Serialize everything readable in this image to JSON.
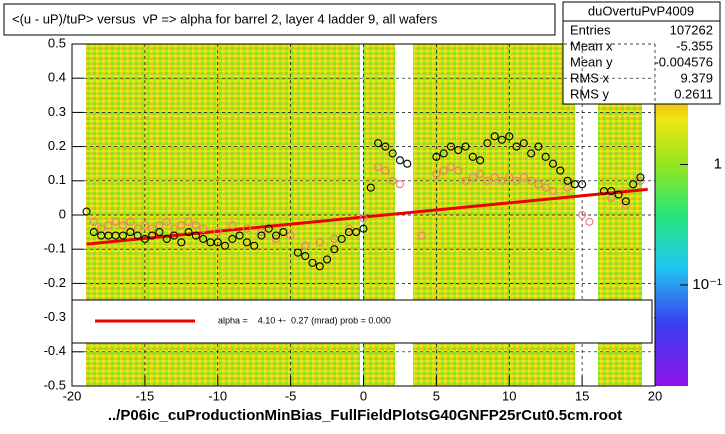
{
  "chart_data": {
    "type": "scatter",
    "title": "<(u - uP)/tuP> versus  vP => alpha for barrel 2, layer 4 ladder 9, all wafers",
    "footnote": "../P06ic_cuProductionMinBias_FullFieldPlotsG40GNFP25rCut0.5cm.root",
    "xlim": [
      -20,
      20
    ],
    "ylim": [
      -0.5,
      0.5
    ],
    "xticks": [
      -20,
      -15,
      -10,
      -5,
      0,
      5,
      10,
      15,
      20
    ],
    "yticks": [
      -0.5,
      -0.4,
      -0.3,
      -0.2,
      -0.1,
      0,
      0.1,
      0.2,
      0.3,
      0.4,
      0.5
    ],
    "grid": true,
    "zlim": [
      0.0145,
      10
    ],
    "zlog": true,
    "zticks": [
      1,
      {
        "value": 0.1,
        "label": "10⁻¹"
      }
    ],
    "series": [
      {
        "color": "#000000",
        "x": [
          -19,
          -18.5,
          -18,
          -17.5,
          -17,
          -16.5,
          -16,
          -15.5,
          -15,
          -14.5,
          -14,
          -13.5,
          -13,
          -12.5,
          -12,
          -11.5,
          -11,
          -10.5,
          -10,
          -9.5,
          -9,
          -8.5,
          -8,
          -7.5,
          -7,
          -6.5,
          -6,
          -5.5,
          -4.5,
          -4,
          -3.5,
          -3,
          -2.5,
          -2,
          -1.5,
          -1,
          -0.5,
          0,
          0.5,
          1,
          1.5,
          2,
          2.5,
          3,
          5,
          5.5,
          6,
          6.5,
          7,
          7.5,
          8,
          8.5,
          9,
          9.5,
          10,
          10.5,
          11,
          11.5,
          12,
          12.5,
          13,
          13.5,
          14,
          14.5,
          15,
          16.5,
          17,
          17.5,
          18,
          18.5,
          19
        ],
        "values": [
          0.01,
          -0.05,
          -0.06,
          -0.06,
          -0.06,
          -0.06,
          -0.05,
          -0.06,
          -0.07,
          -0.06,
          -0.05,
          -0.07,
          -0.06,
          -0.08,
          -0.05,
          -0.06,
          -0.07,
          -0.08,
          -0.08,
          -0.09,
          -0.07,
          -0.06,
          -0.08,
          -0.09,
          -0.06,
          -0.04,
          -0.06,
          -0.05,
          -0.11,
          -0.12,
          -0.14,
          -0.15,
          -0.13,
          -0.1,
          -0.07,
          -0.05,
          -0.05,
          -0.04,
          0.08,
          0.21,
          0.2,
          0.18,
          0.16,
          0.15,
          0.17,
          0.18,
          0.2,
          0.19,
          0.2,
          0.17,
          0.16,
          0.21,
          0.23,
          0.22,
          0.23,
          0.2,
          0.21,
          0.18,
          0.2,
          0.17,
          0.15,
          0.13,
          0.1,
          0.09,
          0.09,
          0.07,
          0.07,
          0.06,
          0.04,
          0.09,
          0.11
        ]
      },
      {
        "color": "#f07878",
        "x": [
          -18.5,
          -18,
          -17.5,
          -17,
          -16.5,
          -16,
          -15.5,
          -15,
          -14.5,
          -14,
          -13.5,
          -13,
          -12.5,
          -12,
          -11.5,
          -11,
          -10,
          -9,
          -8,
          -7,
          -6,
          -5,
          -4,
          -3,
          -2,
          -1,
          0,
          1,
          1.5,
          2,
          2.5,
          4,
          5,
          5.5,
          6,
          6.5,
          7,
          7.5,
          8,
          8.5,
          9,
          9.5,
          10,
          10.5,
          11,
          11.5,
          12,
          12.5,
          13,
          14,
          15,
          15.5,
          17,
          18,
          19
        ],
        "values": [
          -0.02,
          -0.04,
          -0.03,
          -0.02,
          -0.03,
          -0.02,
          -0.04,
          -0.03,
          -0.04,
          -0.03,
          -0.02,
          -0.04,
          -0.03,
          -0.02,
          -0.03,
          -0.04,
          -0.05,
          -0.03,
          -0.04,
          -0.05,
          -0.07,
          -0.06,
          -0.09,
          -0.08,
          -0.07,
          -0.04,
          -0.01,
          0.14,
          0.13,
          0.1,
          0.09,
          -0.06,
          0.12,
          0.13,
          0.14,
          0.13,
          0.1,
          0.11,
          0.12,
          0.1,
          0.11,
          0.1,
          0.11,
          0.1,
          0.11,
          0.1,
          0.09,
          0.08,
          0.07,
          0.08,
          0.0,
          -0.02,
          0.05,
          0.03,
          0.1
        ]
      },
      {
        "name": "alpha =    4.10 +-  0.27 (mrad) prob = 0.000",
        "color": "#ee0000",
        "line": true,
        "x": [
          -19,
          19.5
        ],
        "values": [
          -0.085,
          0.075
        ]
      }
    ],
    "stats": {
      "title": "duOvertuPvP4009",
      "rows": [
        [
          "Entries",
          107262
        ],
        [
          "Mean x",
          -5.355
        ],
        [
          "Mean y",
          -0.004576
        ],
        [
          "RMS x",
          9.379
        ],
        [
          "RMS y",
          0.2611
        ]
      ]
    }
  }
}
